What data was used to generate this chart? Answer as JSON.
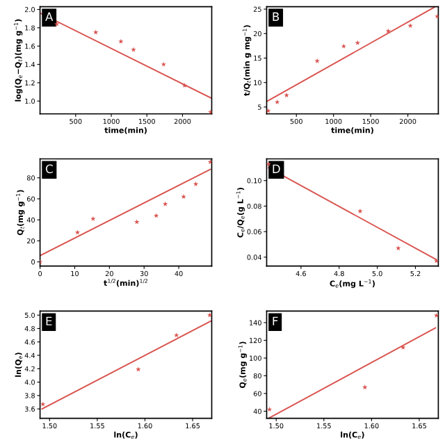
{
  "chart_data": [
    {
      "type": "scatter",
      "annotations": [
        "A"
      ],
      "xlabel": "time(min)",
      "ylabel": "log(Q$_{e}$−Q$_{t}$)(mg g$^{−1}$)",
      "xlim": [
        0,
        2410
      ],
      "ylim": [
        0.86,
        2.03
      ],
      "xticks": [
        500,
        1000,
        1500,
        2000
      ],
      "yticks": [
        {
          "value": 1,
          "label": "1.0"
        },
        1.2,
        1.4,
        1.6,
        1.8,
        {
          "value": 2,
          "label": "2.0"
        }
      ],
      "marker": "star",
      "grid": false,
      "legend": false,
      "series": [
        {
          "color": "#d9534f",
          "x": [
            235,
            782,
            1135,
            1312,
            1735,
            2030,
            2394
          ],
          "values": [
            1.84,
            1.75,
            1.65,
            1.56,
            1.4,
            1.17,
            0.88
          ]
        },
        {
          "type": "line",
          "marker": "none",
          "color": "#d9534f",
          "x": [
            0,
            2410
          ],
          "values": [
            1.96,
            1.03
          ]
        }
      ]
    },
    {
      "type": "scatter",
      "annotations": [
        "B"
      ],
      "xlabel": "time(min)",
      "ylabel": "t/Q$_{t}$(min g mg$^{−1}$)",
      "xlim": [
        100,
        2410
      ],
      "ylim": [
        3.6,
        25.5
      ],
      "xticks": [
        500,
        1000,
        1500,
        2000
      ],
      "yticks": [
        5,
        10,
        15,
        20,
        25
      ],
      "marker": "star",
      "grid": false,
      "legend": false,
      "series": [
        {
          "color": "#d9534f",
          "x": [
            121,
            242,
            368,
            780,
            1137,
            1324,
            1736,
            2033,
            2396
          ],
          "values": [
            4.2,
            6.0,
            7.4,
            14.4,
            17.4,
            18.1,
            20.5,
            21.6,
            23.5
          ]
        },
        {
          "type": "line",
          "marker": "none",
          "color": "#d9534f",
          "x": [
            110,
            2357
          ],
          "values": [
            6.2,
            25.4
          ]
        }
      ]
    },
    {
      "type": "scatter",
      "annotations": [
        "C"
      ],
      "xlabel": "t$^{1/2}$(min)$^{1/2}$",
      "ylabel": "Q$_{t}$(mg g$^{−1}$)",
      "xlim": [
        0,
        49.5
      ],
      "ylim": [
        -4,
        98
      ],
      "xticks": [
        0,
        10,
        20,
        30,
        40
      ],
      "yticks": [
        0,
        20,
        40,
        60,
        80
      ],
      "marker": "star",
      "grid": false,
      "legend": false,
      "series": [
        {
          "color": "#d9534f",
          "x": [
            0,
            10.8,
            15.3,
            27.9,
            33.5,
            36.1,
            41.4,
            44.9,
            49.1
          ],
          "values": [
            0,
            28,
            41,
            38,
            44,
            55,
            62,
            74,
            95
          ]
        },
        {
          "type": "line",
          "marker": "none",
          "color": "#d9534f",
          "x": [
            0,
            49.1
          ],
          "values": [
            6,
            88
          ]
        }
      ]
    },
    {
      "type": "scatter",
      "annotations": [
        "D"
      ],
      "xlabel": "C$_{e}$(mg L$^{−1}$)",
      "ylabel": "C$_{e}$/Q$_{e}$(g L$^{−1}$)",
      "xlim": [
        4.42,
        5.32
      ],
      "ylim": [
        0.033,
        0.117
      ],
      "xticks": [
        4.6,
        4.8,
        {
          "value": 5,
          "label": "5.0"
        },
        5.2
      ],
      "yticks": [
        0.04,
        0.06,
        0.08,
        {
          "value": 0.1,
          "label": "0.10"
        }
      ],
      "marker": "star",
      "grid": false,
      "legend": false,
      "series": [
        {
          "color": "#d9534f",
          "x": [
            4.43,
            4.91,
            5.11,
            5.31
          ],
          "values": [
            0.113,
            0.076,
            0.047,
            0.037
          ]
        },
        {
          "type": "line",
          "marker": "none",
          "color": "#d9534f",
          "x": [
            4.43,
            5.31
          ],
          "values": [
            0.11,
            0.038
          ]
        }
      ]
    },
    {
      "type": "scatter",
      "annotations": [
        "E"
      ],
      "xlabel": "ln(C$_{e}$)",
      "ylabel": "ln(Q$_{e}$)",
      "xlim": [
        1.49,
        1.67
      ],
      "ylim": [
        3.46,
        5.06
      ],
      "xticks": [
        {
          "value": 1.5,
          "label": "1.50"
        },
        1.55,
        {
          "value": 1.6,
          "label": "1.60"
        },
        1.65
      ],
      "yticks": [
        3.6,
        3.8,
        {
          "value": 4,
          "label": "4.0"
        },
        4.2,
        4.4,
        4.6,
        4.8,
        {
          "value": 5,
          "label": "5.0"
        }
      ],
      "marker": "star",
      "grid": false,
      "legend": false,
      "series": [
        {
          "color": "#d9534f",
          "x": [
            1.493,
            1.593,
            1.633,
            1.668
          ],
          "values": [
            3.67,
            4.19,
            4.7,
            5.0
          ]
        },
        {
          "type": "line",
          "marker": "none",
          "color": "#d9534f",
          "x": [
            1.492,
            1.669
          ],
          "values": [
            3.6,
            4.91
          ]
        }
      ]
    },
    {
      "type": "scatter",
      "annotations": [
        "F"
      ],
      "xlabel": "ln(C$_{e}$)",
      "ylabel": "Q$_{e}$(mg g$^{−1}$)",
      "xlim": [
        1.49,
        1.67
      ],
      "ylim": [
        32,
        153
      ],
      "xticks": [
        {
          "value": 1.5,
          "label": "1.50"
        },
        1.55,
        {
          "value": 1.6,
          "label": "1.60"
        },
        1.65
      ],
      "yticks": [
        40,
        60,
        80,
        100,
        120,
        140
      ],
      "marker": "star",
      "grid": false,
      "legend": false,
      "series": [
        {
          "color": "#d9534f",
          "x": [
            1.493,
            1.593,
            1.633,
            1.668
          ],
          "values": [
            42,
            67,
            112,
            148
          ]
        },
        {
          "type": "line",
          "marker": "none",
          "color": "#d9534f",
          "x": [
            1.492,
            1.667
          ],
          "values": [
            32,
            134
          ]
        }
      ]
    }
  ]
}
